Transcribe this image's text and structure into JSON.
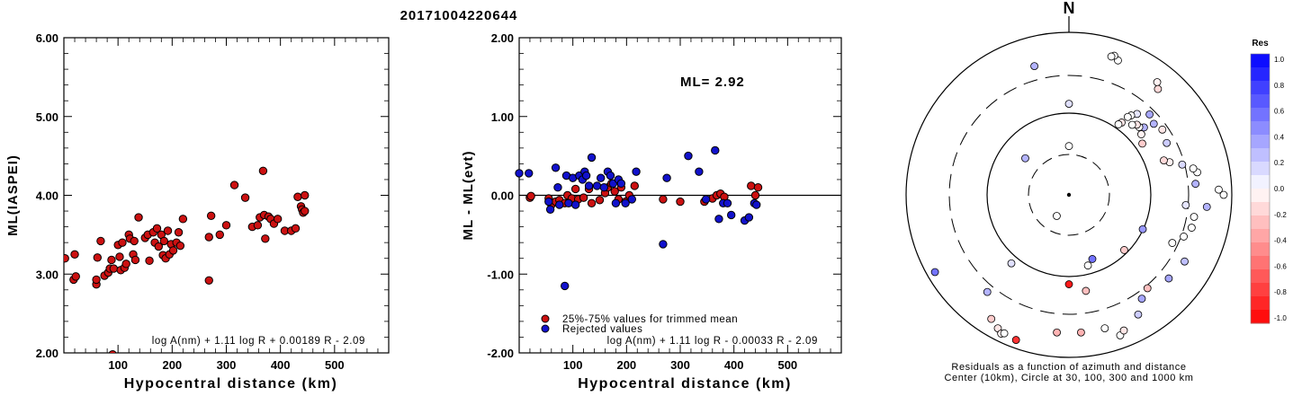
{
  "title": "20171004220644",
  "chart_data": [
    {
      "type": "scatter",
      "title": "",
      "xlabel": "Hypocentral distance (km)",
      "ylabel": "ML(IASPEI)",
      "xlim": [
        0,
        600
      ],
      "ylim": [
        2.0,
        6.0
      ],
      "x_ticks": [
        "100",
        "200",
        "300",
        "400",
        "500"
      ],
      "y_ticks": [
        "2.00",
        "3.00",
        "4.00",
        "5.00",
        "6.00"
      ],
      "formula": "log A(nm) + 1.11 log R + 0.00189 R - 2.09",
      "colors": {
        "points": "#cc1111"
      },
      "points": [
        [
          2,
          3.2
        ],
        [
          20,
          3.25
        ],
        [
          18,
          2.93
        ],
        [
          22,
          2.97
        ],
        [
          60,
          2.87
        ],
        [
          60,
          2.93
        ],
        [
          62,
          3.21
        ],
        [
          68,
          3.42
        ],
        [
          75,
          2.98
        ],
        [
          82,
          3.02
        ],
        [
          85,
          3.07
        ],
        [
          88,
          3.18
        ],
        [
          92,
          3.07
        ],
        [
          100,
          3.37
        ],
        [
          103,
          3.22
        ],
        [
          105,
          3.05
        ],
        [
          108,
          3.4
        ],
        [
          112,
          3.08
        ],
        [
          115,
          3.13
        ],
        [
          120,
          3.5
        ],
        [
          122,
          3.45
        ],
        [
          128,
          3.25
        ],
        [
          130,
          3.42
        ],
        [
          132,
          3.18
        ],
        [
          138,
          3.72
        ],
        [
          150,
          3.46
        ],
        [
          155,
          3.5
        ],
        [
          158,
          3.17
        ],
        [
          165,
          3.53
        ],
        [
          168,
          3.4
        ],
        [
          172,
          3.58
        ],
        [
          175,
          3.35
        ],
        [
          180,
          3.5
        ],
        [
          183,
          3.24
        ],
        [
          185,
          3.42
        ],
        [
          188,
          3.2
        ],
        [
          192,
          3.55
        ],
        [
          195,
          3.25
        ],
        [
          198,
          3.38
        ],
        [
          202,
          3.3
        ],
        [
          208,
          3.4
        ],
        [
          212,
          3.53
        ],
        [
          215,
          3.36
        ],
        [
          220,
          3.7
        ],
        [
          268,
          2.92
        ],
        [
          268,
          3.47
        ],
        [
          272,
          3.74
        ],
        [
          288,
          3.5
        ],
        [
          300,
          3.62
        ],
        [
          315,
          4.13
        ],
        [
          335,
          3.97
        ],
        [
          348,
          3.6
        ],
        [
          358,
          3.62
        ],
        [
          362,
          3.72
        ],
        [
          368,
          4.31
        ],
        [
          370,
          3.75
        ],
        [
          372,
          3.45
        ],
        [
          378,
          3.73
        ],
        [
          382,
          3.7
        ],
        [
          388,
          3.64
        ],
        [
          395,
          3.7
        ],
        [
          408,
          3.55
        ],
        [
          420,
          3.55
        ],
        [
          428,
          3.58
        ],
        [
          432,
          3.98
        ],
        [
          438,
          3.86
        ],
        [
          440,
          3.82
        ],
        [
          442,
          3.78
        ],
        [
          445,
          4.0
        ],
        [
          445,
          3.8
        ],
        [
          90,
          1.98
        ]
      ]
    },
    {
      "type": "scatter",
      "title": "",
      "xlabel": "Hypocentral distance (km)",
      "ylabel": "ML - ML(evt)",
      "xlim": [
        0,
        600
      ],
      "ylim": [
        -2.0,
        2.0
      ],
      "x_ticks": [
        "100",
        "200",
        "300",
        "400",
        "500"
      ],
      "y_ticks": [
        "-2.00",
        "-1.00",
        "0.00",
        "1.00",
        "2.00"
      ],
      "annotation": "ML= 2.92",
      "formula": "log A(nm) + 1.11 log R - 0.00033 R - 2.09",
      "legend": [
        "25%-75% values for trimmed mean",
        "Rejected values"
      ],
      "colors": {
        "trimmed": "#cc1111",
        "rejected": "#1111cc"
      },
      "series": [
        {
          "name": "25%-75% values for trimmed mean",
          "points": [
            [
              20,
              -0.03
            ],
            [
              22,
              -0.01
            ],
            [
              55,
              -0.04
            ],
            [
              60,
              -0.12
            ],
            [
              68,
              -0.08
            ],
            [
              75,
              -0.06
            ],
            [
              85,
              -0.1
            ],
            [
              90,
              0.0
            ],
            [
              98,
              -0.04
            ],
            [
              105,
              0.08
            ],
            [
              110,
              -0.05
            ],
            [
              120,
              -0.03
            ],
            [
              130,
              0.08
            ],
            [
              135,
              -0.1
            ],
            [
              150,
              -0.06
            ],
            [
              160,
              0.03
            ],
            [
              165,
              0.1
            ],
            [
              172,
              0.15
            ],
            [
              178,
              0.05
            ],
            [
              185,
              -0.05
            ],
            [
              190,
              0.1
            ],
            [
              198,
              -0.08
            ],
            [
              205,
              0.0
            ],
            [
              215,
              0.12
            ],
            [
              268,
              -0.05
            ],
            [
              300,
              -0.08
            ],
            [
              345,
              -0.08
            ],
            [
              360,
              -0.04
            ],
            [
              368,
              0.0
            ],
            [
              375,
              0.02
            ],
            [
              382,
              -0.02
            ],
            [
              432,
              0.12
            ],
            [
              440,
              0.0
            ],
            [
              445,
              0.1
            ]
          ]
        },
        {
          "name": "Rejected values",
          "points": [
            [
              0,
              0.28
            ],
            [
              18,
              0.28
            ],
            [
              55,
              -0.08
            ],
            [
              58,
              -0.18
            ],
            [
              68,
              0.35
            ],
            [
              72,
              0.1
            ],
            [
              75,
              -0.12
            ],
            [
              85,
              -1.15
            ],
            [
              88,
              0.25
            ],
            [
              92,
              -0.1
            ],
            [
              100,
              0.22
            ],
            [
              105,
              -0.12
            ],
            [
              112,
              0.25
            ],
            [
              118,
              0.2
            ],
            [
              122,
              0.3
            ],
            [
              125,
              0.25
            ],
            [
              130,
              0.12
            ],
            [
              135,
              0.48
            ],
            [
              145,
              0.12
            ],
            [
              152,
              0.22
            ],
            [
              158,
              0.1
            ],
            [
              165,
              0.3
            ],
            [
              170,
              0.25
            ],
            [
              175,
              0.15
            ],
            [
              180,
              -0.1
            ],
            [
              185,
              0.2
            ],
            [
              190,
              0.15
            ],
            [
              198,
              -0.1
            ],
            [
              210,
              -0.05
            ],
            [
              218,
              0.3
            ],
            [
              268,
              -0.62
            ],
            [
              275,
              0.22
            ],
            [
              315,
              0.5
            ],
            [
              335,
              0.3
            ],
            [
              348,
              -0.05
            ],
            [
              365,
              0.57
            ],
            [
              372,
              -0.3
            ],
            [
              380,
              -0.1
            ],
            [
              388,
              -0.1
            ],
            [
              395,
              -0.25
            ],
            [
              420,
              -0.32
            ],
            [
              428,
              -0.28
            ],
            [
              438,
              -0.1
            ],
            [
              442,
              -0.12
            ]
          ]
        }
      ]
    },
    {
      "type": "polar_scatter",
      "title": "N",
      "caption_line1": "Residuals as a function of azimuth and distance",
      "caption_line2": "Center (10km), Circle at 30, 100, 300 and 1000 km",
      "colorbar": {
        "title": "Res",
        "labels": [
          "1.0",
          "0.8",
          "0.6",
          "0.4",
          "0.2",
          "0.0",
          "-0.2",
          "-0.4",
          "-0.6",
          "-0.8",
          "-1.0"
        ],
        "max_color": "#0000ff",
        "min_color": "#ff0000"
      },
      "points": [
        [
          0,
          0.3,
          0.0
        ],
        [
          165,
          0.45,
          0.0
        ],
        [
          210,
          0.15,
          0.0
        ],
        [
          220,
          0.55,
          0.12
        ],
        [
          310,
          0.35,
          0.3
        ],
        [
          0,
          0.56,
          0.12
        ],
        [
          20,
          0.88,
          0.0
        ],
        [
          18,
          0.9,
          0.0
        ],
        [
          17,
          0.89,
          0.0
        ],
        [
          345,
          0.82,
          0.3
        ],
        [
          38,
          0.88,
          -0.05
        ],
        [
          40,
          0.85,
          -0.15
        ],
        [
          72,
          0.65,
          -0.05
        ],
        [
          160,
          0.42,
          0.55
        ],
        [
          170,
          0.6,
          -0.25
        ],
        [
          135,
          0.48,
          -0.2
        ],
        [
          115,
          0.5,
          0.4
        ],
        [
          95,
          0.72,
          0.1
        ],
        [
          220,
          0.78,
          0.3
        ],
        [
          240,
          0.95,
          0.55
        ],
        [
          212,
          0.9,
          -0.2
        ],
        [
          208,
          0.93,
          -0.1
        ],
        [
          206,
          0.95,
          -0.05
        ],
        [
          205,
          0.94,
          0.0
        ],
        [
          200,
          0.95,
          -0.8
        ],
        [
          180,
          0.55,
          -0.9
        ],
        [
          175,
          0.85,
          -0.3
        ],
        [
          185,
          0.85,
          -0.3
        ],
        [
          165,
          0.85,
          0.0
        ],
        [
          160,
          0.92,
          0.0
        ],
        [
          158,
          0.9,
          -0.1
        ],
        [
          150,
          0.85,
          0.2
        ],
        [
          145,
          0.78,
          0.35
        ],
        [
          140,
          0.75,
          -0.25
        ],
        [
          130,
          0.8,
          0.35
        ],
        [
          120,
          0.82,
          0.25
        ],
        [
          115,
          0.7,
          0.0
        ],
        [
          110,
          0.75,
          0.0
        ],
        [
          105,
          0.78,
          0.0
        ],
        [
          100,
          0.78,
          0.0
        ],
        [
          95,
          0.85,
          0.3
        ],
        [
          90,
          0.95,
          0.0
        ],
        [
          88,
          0.92,
          0.0
        ],
        [
          85,
          0.78,
          0.3
        ],
        [
          80,
          0.8,
          0.0
        ],
        [
          78,
          0.78,
          0.0
        ],
        [
          75,
          0.72,
          0.15
        ],
        [
          70,
          0.62,
          -0.15
        ],
        [
          62,
          0.68,
          0.2
        ],
        [
          55,
          0.7,
          -0.1
        ],
        [
          50,
          0.68,
          0.3
        ],
        [
          48,
          0.62,
          0.3
        ],
        [
          46,
          0.6,
          0.0
        ],
        [
          44,
          0.6,
          -0.1
        ],
        [
          42,
          0.58,
          0.0
        ],
        [
          40,
          0.65,
          0.1
        ],
        [
          38,
          0.62,
          0.0
        ],
        [
          37,
          0.6,
          0.0
        ],
        [
          36,
          0.55,
          -0.1
        ],
        [
          35,
          0.53,
          0.0
        ],
        [
          45,
          0.7,
          0.35
        ],
        [
          50,
          0.58,
          -0.05
        ],
        [
          55,
          0.55,
          -0.2
        ]
      ]
    }
  ]
}
